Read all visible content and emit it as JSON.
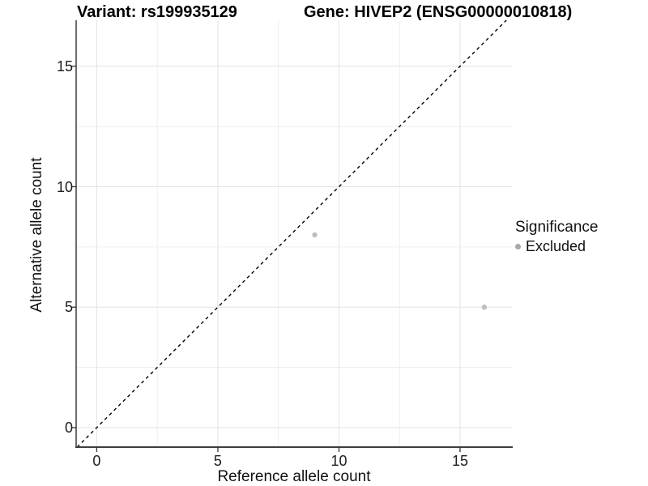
{
  "chart_data": {
    "type": "scatter",
    "titles": [
      "Variant: rs199935129",
      "Gene: HIVEP2 (ENSG00000010818)"
    ],
    "xlabel": "Reference allele count",
    "ylabel": "Alternative allele count",
    "xlim": [
      -0.85,
      17.14
    ],
    "ylim": [
      -0.81,
      16.91
    ],
    "x_ticks": [
      0,
      5,
      10,
      15
    ],
    "y_ticks": [
      0,
      5,
      10,
      15
    ],
    "x_minor_ticks": [
      2.5,
      7.5,
      12.5
    ],
    "y_minor_ticks": [
      2.5,
      7.5,
      12.5
    ],
    "grid": true,
    "identity_line": {
      "style": "dashed",
      "slope": 1,
      "intercept": 0
    },
    "series": [
      {
        "name": "Excluded",
        "points": [
          {
            "x": 9,
            "y": 8
          },
          {
            "x": 16,
            "y": 5
          }
        ]
      }
    ],
    "legend": {
      "position": "right",
      "title": "Significance",
      "items": [
        {
          "label": "Excluded"
        }
      ]
    }
  },
  "style": {
    "point_color": "#bfbfbf",
    "legend_dot_color": "#a8a8a8",
    "grid_major_color": "#e3e3e3",
    "grid_minor_color": "#efefef",
    "axis_line_color": "#3d3d3d",
    "tick_mark_color": "#333333",
    "dashed_line_color": "#000000"
  }
}
